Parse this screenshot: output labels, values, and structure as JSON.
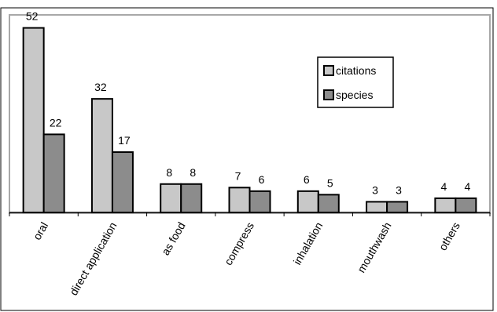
{
  "chart_data": {
    "type": "bar",
    "categories": [
      "oral",
      "direct application",
      "as food",
      "compress",
      "inhalation",
      "mouthwash",
      "others"
    ],
    "series": [
      {
        "name": "citations",
        "values": [
          52,
          32,
          8,
          7,
          6,
          3,
          4
        ],
        "color": "#c8c8c8"
      },
      {
        "name": "species",
        "values": [
          22,
          17,
          8,
          6,
          5,
          3,
          4
        ],
        "color": "#8c8c8c"
      }
    ],
    "title": "",
    "xlabel": "",
    "ylabel": "",
    "ylim": [
      0,
      55
    ],
    "grid": false,
    "legend_position": "top-right",
    "data_labels": true
  }
}
